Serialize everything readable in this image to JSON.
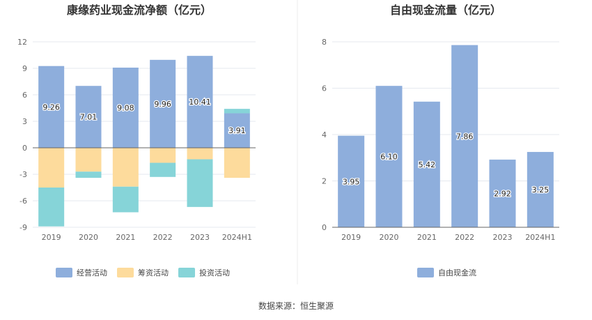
{
  "colors": {
    "operating": "#8eaedc",
    "financing": "#fddb9c",
    "investing": "#86d4d8",
    "free_cf": "#8eaedc",
    "grid": "#e6e9ef",
    "axis": "#666666"
  },
  "source": "数据来源：恒生聚源",
  "chart_data": [
    {
      "type": "bar",
      "stacked": true,
      "title": "康缘药业现金流净额（亿元）",
      "categories": [
        "2019",
        "2020",
        "2021",
        "2022",
        "2023",
        "2024H1"
      ],
      "ylim": [
        -9,
        12
      ],
      "yticks": [
        12,
        9,
        6,
        3,
        0,
        -3,
        -6,
        -9
      ],
      "grid": true,
      "legend_position": "bottom",
      "series": [
        {
          "name": "经营活动",
          "values": [
            9.26,
            7.01,
            9.08,
            9.96,
            10.41,
            3.91
          ],
          "labels": [
            "9.26",
            "7.01",
            "9.08",
            "9.96",
            "10.41",
            "3.91"
          ]
        },
        {
          "name": "筹资活动",
          "values": [
            -4.5,
            -2.7,
            -4.4,
            -1.7,
            -1.3,
            -3.4
          ]
        },
        {
          "name": "投资活动",
          "values": [
            -4.4,
            -0.7,
            -2.9,
            -1.6,
            -5.4,
            0.5
          ]
        }
      ]
    },
    {
      "type": "bar",
      "title": "自由现金流量（亿元）",
      "categories": [
        "2019",
        "2020",
        "2021",
        "2022",
        "2023",
        "2024H1"
      ],
      "ylim": [
        0,
        8
      ],
      "yticks": [
        8,
        6,
        4,
        2,
        0
      ],
      "grid": true,
      "legend_position": "bottom",
      "series": [
        {
          "name": "自由现金流",
          "values": [
            3.95,
            6.1,
            5.42,
            7.86,
            2.92,
            3.25
          ],
          "labels": [
            "3.95",
            "6.10",
            "5.42",
            "7.86",
            "2.92",
            "3.25"
          ]
        }
      ]
    }
  ]
}
